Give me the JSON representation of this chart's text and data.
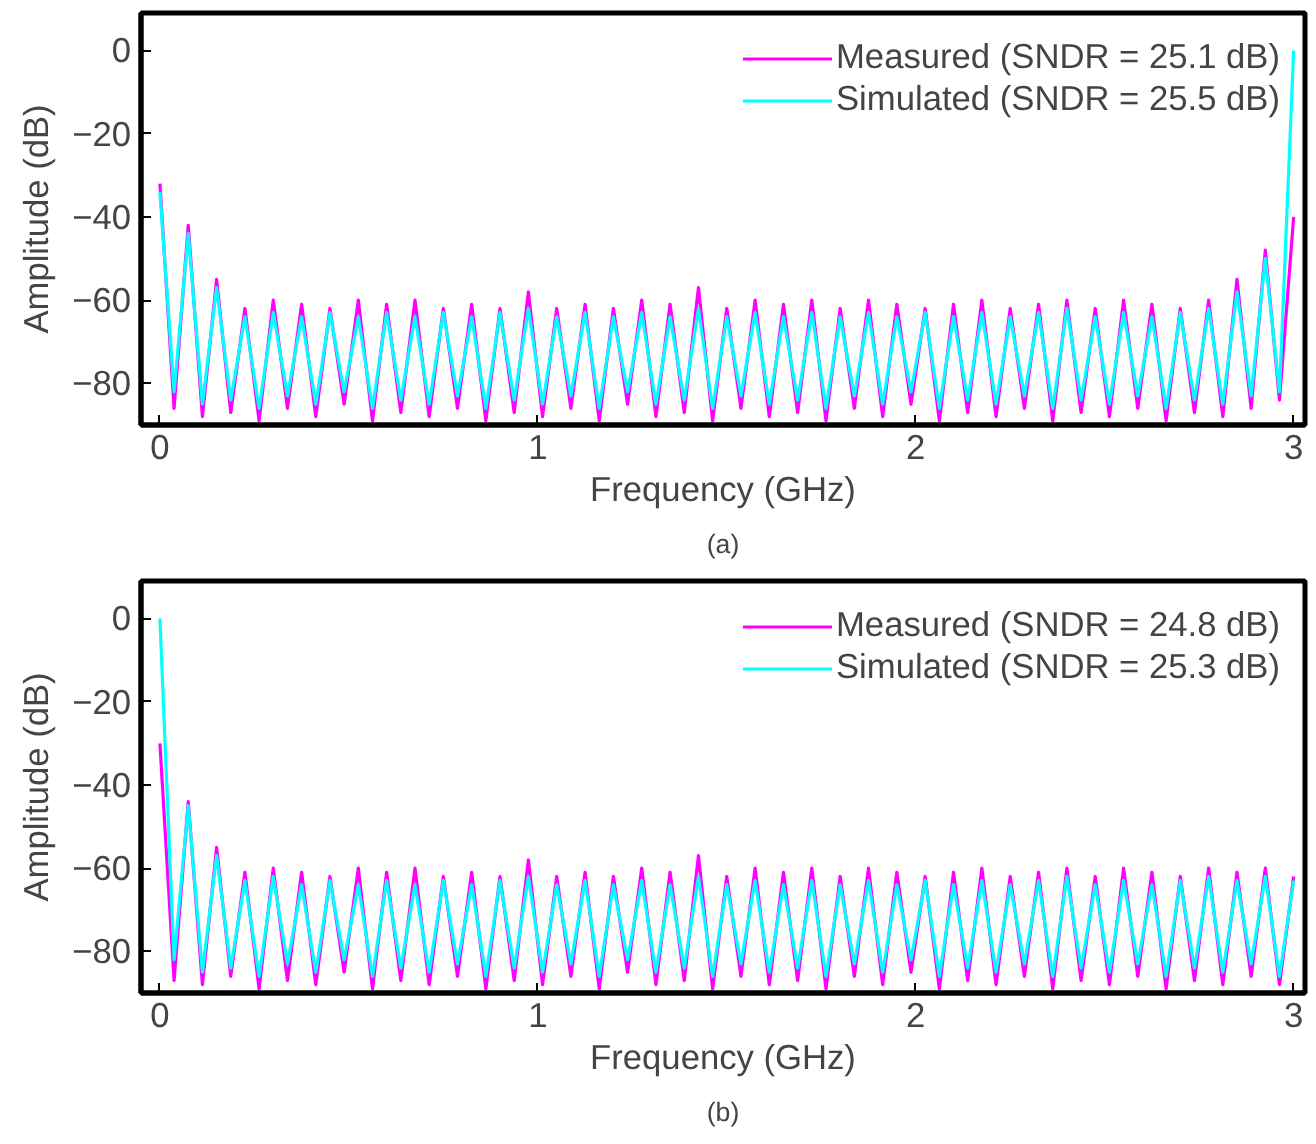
{
  "chart_data": [
    {
      "type": "line",
      "xlabel": "Frequency (GHz)",
      "ylabel": "Amplitude (dB)",
      "annotations": [
        "(a)"
      ],
      "xlim": [
        -0.05,
        3.03
      ],
      "ylim": [
        -90,
        9
      ],
      "xticks": [
        0,
        1,
        2,
        3
      ],
      "yticks": [
        0,
        -20,
        -40,
        -60,
        -80
      ],
      "grid": false,
      "legend": "top right",
      "x": [
        0,
        0.0375,
        0.075,
        0.1125,
        0.15,
        0.1875,
        0.225,
        0.2625,
        0.3,
        0.3375,
        0.375,
        0.4125,
        0.45,
        0.4875,
        0.525,
        0.5625,
        0.6,
        0.6375,
        0.675,
        0.7125,
        0.75,
        0.7875,
        0.825,
        0.8625,
        0.9,
        0.9375,
        0.975,
        1.0125,
        1.05,
        1.0875,
        1.125,
        1.1625,
        1.2,
        1.2375,
        1.275,
        1.3125,
        1.35,
        1.3875,
        1.425,
        1.4625,
        1.5,
        1.5375,
        1.575,
        1.6125,
        1.65,
        1.6875,
        1.725,
        1.7625,
        1.8,
        1.8375,
        1.875,
        1.9125,
        1.95,
        1.9875,
        2.025,
        2.0625,
        2.1,
        2.1375,
        2.175,
        2.2125,
        2.25,
        2.2875,
        2.325,
        2.3625,
        2.4,
        2.4375,
        2.475,
        2.5125,
        2.55,
        2.5875,
        2.625,
        2.6625,
        2.7,
        2.7375,
        2.775,
        2.8125,
        2.85,
        2.8875,
        2.925,
        2.9625,
        3.0
      ],
      "series": [
        {
          "name": "Measured (SNDR = 25.1 dB)",
          "color": "#ff00ff",
          "values": [
            -32,
            -86,
            -42,
            -88,
            -55,
            -87,
            -62,
            -89,
            -60,
            -86,
            -61,
            -88,
            -62,
            -85,
            -60,
            -89,
            -61,
            -87,
            -60,
            -88,
            -62,
            -86,
            -61,
            -89,
            -62,
            -87,
            -58,
            -88,
            -62,
            -86,
            -61,
            -89,
            -62,
            -85,
            -60,
            -88,
            -61,
            -87,
            -57,
            -89,
            -62,
            -86,
            -60,
            -88,
            -61,
            -87,
            -60,
            -89,
            -62,
            -86,
            -60,
            -88,
            -61,
            -85,
            -62,
            -89,
            -61,
            -87,
            -60,
            -88,
            -62,
            -86,
            -61,
            -89,
            -60,
            -87,
            -62,
            -88,
            -60,
            -86,
            -61,
            -89,
            -62,
            -87,
            -60,
            -88,
            -55,
            -86,
            -48,
            -84,
            -40
          ]
        },
        {
          "name": "Simulated (SNDR = 25.5 dB)",
          "color": "#00ffff",
          "values": [
            -34,
            -82,
            -44,
            -85,
            -57,
            -84,
            -64,
            -86,
            -63,
            -83,
            -64,
            -85,
            -63,
            -82,
            -64,
            -86,
            -63,
            -84,
            -64,
            -85,
            -63,
            -83,
            -64,
            -86,
            -63,
            -84,
            -62,
            -85,
            -64,
            -83,
            -63,
            -86,
            -64,
            -82,
            -63,
            -85,
            -64,
            -84,
            -62,
            -86,
            -64,
            -83,
            -63,
            -85,
            -64,
            -84,
            -63,
            -86,
            -64,
            -83,
            -63,
            -85,
            -64,
            -82,
            -63,
            -86,
            -64,
            -84,
            -63,
            -85,
            -64,
            -83,
            -63,
            -86,
            -62,
            -84,
            -64,
            -85,
            -63,
            -83,
            -64,
            -86,
            -63,
            -84,
            -62,
            -85,
            -58,
            -83,
            -50,
            -82,
            0
          ]
        }
      ]
    },
    {
      "type": "line",
      "xlabel": "Frequency (GHz)",
      "ylabel": "Amplitude (dB)",
      "annotations": [
        "(b)"
      ],
      "xlim": [
        -0.05,
        3.03
      ],
      "ylim": [
        -90,
        9
      ],
      "xticks": [
        0,
        1,
        2,
        3
      ],
      "yticks": [
        0,
        -20,
        -40,
        -60,
        -80
      ],
      "grid": false,
      "legend": "top right",
      "x": [
        0,
        0.0375,
        0.075,
        0.1125,
        0.15,
        0.1875,
        0.225,
        0.2625,
        0.3,
        0.3375,
        0.375,
        0.4125,
        0.45,
        0.4875,
        0.525,
        0.5625,
        0.6,
        0.6375,
        0.675,
        0.7125,
        0.75,
        0.7875,
        0.825,
        0.8625,
        0.9,
        0.9375,
        0.975,
        1.0125,
        1.05,
        1.0875,
        1.125,
        1.1625,
        1.2,
        1.2375,
        1.275,
        1.3125,
        1.35,
        1.3875,
        1.425,
        1.4625,
        1.5,
        1.5375,
        1.575,
        1.6125,
        1.65,
        1.6875,
        1.725,
        1.7625,
        1.8,
        1.8375,
        1.875,
        1.9125,
        1.95,
        1.9875,
        2.025,
        2.0625,
        2.1,
        2.1375,
        2.175,
        2.2125,
        2.25,
        2.2875,
        2.325,
        2.3625,
        2.4,
        2.4375,
        2.475,
        2.5125,
        2.55,
        2.5875,
        2.625,
        2.6625,
        2.7,
        2.7375,
        2.775,
        2.8125,
        2.85,
        2.8875,
        2.925,
        2.9625,
        3.0
      ],
      "series": [
        {
          "name": "Measured (SNDR = 24.8 dB)",
          "color": "#ff00ff",
          "values": [
            -30,
            -87,
            -44,
            -88,
            -55,
            -86,
            -61,
            -89,
            -60,
            -87,
            -61,
            -88,
            -62,
            -85,
            -60,
            -89,
            -61,
            -87,
            -60,
            -88,
            -62,
            -86,
            -61,
            -89,
            -62,
            -87,
            -58,
            -88,
            -62,
            -86,
            -61,
            -89,
            -62,
            -85,
            -60,
            -88,
            -61,
            -87,
            -57,
            -89,
            -62,
            -86,
            -60,
            -88,
            -61,
            -87,
            -60,
            -89,
            -62,
            -86,
            -60,
            -88,
            -61,
            -85,
            -62,
            -89,
            -61,
            -87,
            -60,
            -88,
            -62,
            -86,
            -61,
            -89,
            -60,
            -87,
            -62,
            -88,
            -60,
            -86,
            -61,
            -89,
            -62,
            -87,
            -60,
            -88,
            -61,
            -86,
            -60,
            -88,
            -62
          ]
        },
        {
          "name": "Simulated (SNDR = 25.3 dB)",
          "color": "#00ffff",
          "values": [
            0,
            -82,
            -45,
            -85,
            -57,
            -84,
            -63,
            -86,
            -62,
            -83,
            -64,
            -85,
            -63,
            -82,
            -64,
            -86,
            -63,
            -84,
            -64,
            -85,
            -63,
            -83,
            -64,
            -86,
            -63,
            -84,
            -62,
            -85,
            -64,
            -83,
            -63,
            -86,
            -64,
            -82,
            -63,
            -85,
            -64,
            -84,
            -62,
            -86,
            -64,
            -83,
            -63,
            -85,
            -64,
            -84,
            -63,
            -86,
            -64,
            -83,
            -63,
            -85,
            -64,
            -82,
            -63,
            -86,
            -64,
            -84,
            -63,
            -85,
            -64,
            -83,
            -63,
            -86,
            -62,
            -84,
            -64,
            -85,
            -63,
            -83,
            -64,
            -86,
            -63,
            -84,
            -62,
            -85,
            -63,
            -83,
            -62,
            -86,
            -63
          ]
        }
      ]
    }
  ]
}
